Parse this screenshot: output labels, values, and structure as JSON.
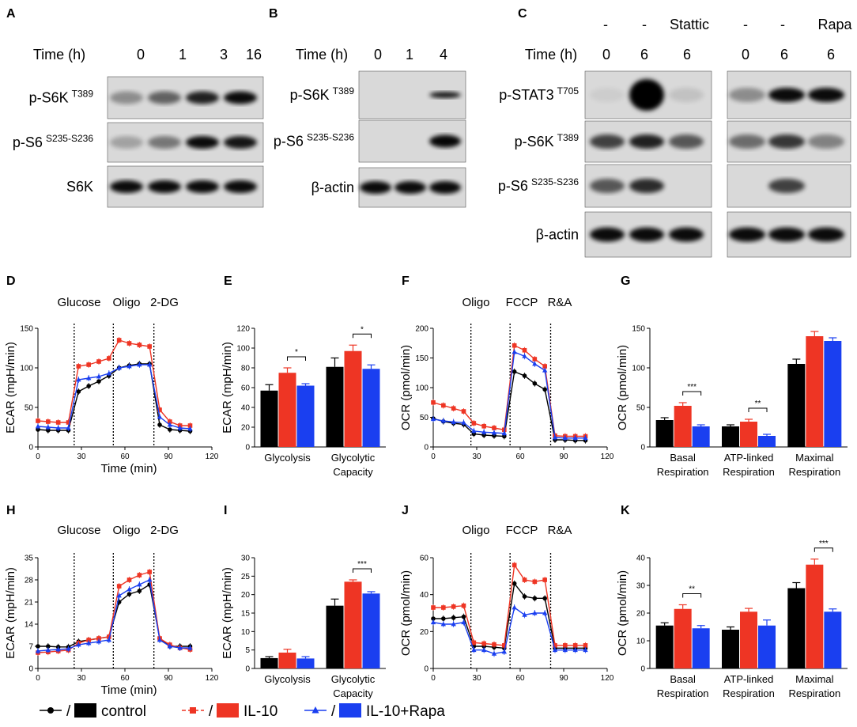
{
  "colors": {
    "control": "#000000",
    "il10": "#ee3524",
    "rapa": "#1a3ff0"
  },
  "blots": {
    "A": {
      "letter": "A",
      "time_label": "Time (h)",
      "times": [
        "0",
        "1",
        "3",
        "16"
      ],
      "rows": [
        {
          "base": "p-S6K",
          "sup": "T389"
        },
        {
          "base": "p-S6",
          "sup": "S235-S236"
        },
        {
          "base": "S6K",
          "sup": ""
        }
      ]
    },
    "B": {
      "letter": "B",
      "time_label": "Time (h)",
      "times": [
        "0",
        "1",
        "4"
      ],
      "rows": [
        {
          "base": "p-S6K",
          "sup": "T389"
        },
        {
          "base": "p-S6",
          "sup": "S235-S236"
        },
        {
          "base": "β-actin",
          "sup": ""
        }
      ]
    },
    "C": {
      "letter": "C",
      "time_label": "Time (h)",
      "left_treat": [
        "-",
        "-",
        "Stattic"
      ],
      "right_treat": [
        "-",
        "-",
        "Rapa"
      ],
      "left_times": [
        "0",
        "6",
        "6"
      ],
      "right_times": [
        "0",
        "6",
        "6"
      ],
      "rows": [
        {
          "base": "p-STAT3",
          "sup": "T705"
        },
        {
          "base": "p-S6K",
          "sup": "T389"
        },
        {
          "base": "p-S6",
          "sup": "S235-S236"
        },
        {
          "base": "β-actin",
          "sup": ""
        }
      ]
    }
  },
  "chart_data": [
    {
      "panel": "D",
      "type": "line",
      "injections": [
        "Glucose",
        "Oligo",
        "2-DG"
      ],
      "xlabel": "Time (min)",
      "ylabel": "ECAR (mpH/min)",
      "xlim": [
        0,
        120
      ],
      "ylim": [
        0,
        150
      ],
      "xticks": [
        0,
        30,
        60,
        90,
        120
      ],
      "yticks": [
        0,
        50,
        100,
        150
      ],
      "vlines": [
        25,
        52,
        80
      ],
      "x": [
        0,
        7,
        14,
        21,
        28,
        35,
        42,
        49,
        56,
        63,
        70,
        77,
        84,
        91,
        98,
        105
      ],
      "series": [
        {
          "name": "control",
          "values": [
            22,
            21,
            21,
            21,
            70,
            77,
            83,
            90,
            100,
            103,
            105,
            105,
            28,
            22,
            21,
            20
          ]
        },
        {
          "name": "IL-10",
          "values": [
            33,
            32,
            31,
            31,
            102,
            104,
            108,
            112,
            135,
            131,
            129,
            127,
            47,
            32,
            27,
            27
          ]
        },
        {
          "name": "IL-10+Rapa",
          "values": [
            26,
            25,
            24,
            24,
            85,
            87,
            89,
            93,
            100,
            102,
            104,
            104,
            38,
            28,
            24,
            23
          ]
        }
      ]
    },
    {
      "panel": "E",
      "type": "bar",
      "categories": [
        "Glycolysis",
        "Glycolytic Capacity"
      ],
      "ylabel": "ECAR (mpH/min)",
      "ylim": [
        0,
        120
      ],
      "yticks": [
        0,
        20,
        40,
        60,
        80,
        100,
        120
      ],
      "series": [
        {
          "name": "control",
          "values": [
            57,
            81
          ]
        },
        {
          "name": "IL-10",
          "values": [
            75,
            97
          ]
        },
        {
          "name": "IL-10+Rapa",
          "values": [
            62,
            79
          ]
        }
      ],
      "errors": [
        [
          6,
          9
        ],
        [
          5,
          6
        ],
        [
          2,
          4
        ]
      ],
      "significance": [
        {
          "category": 0,
          "from": 1,
          "to": 2,
          "label": "*"
        },
        {
          "category": 1,
          "from": 1,
          "to": 2,
          "label": "*"
        }
      ]
    },
    {
      "panel": "F",
      "type": "line",
      "injections": [
        "Oligo",
        "FCCP",
        "R&A"
      ],
      "xlabel": "",
      "ylabel": "OCR (pmol/min)",
      "xlim": [
        0,
        120
      ],
      "ylim": [
        0,
        200
      ],
      "xticks": [
        0,
        30,
        60,
        90,
        120
      ],
      "yticks": [
        0,
        50,
        100,
        150,
        200
      ],
      "vlines": [
        26,
        53,
        81
      ],
      "x": [
        0,
        7,
        14,
        21,
        28,
        35,
        42,
        49,
        56,
        63,
        70,
        77,
        84,
        91,
        98,
        105
      ],
      "series": [
        {
          "name": "control",
          "values": [
            48,
            43,
            40,
            38,
            22,
            20,
            19,
            18,
            127,
            120,
            107,
            97,
            12,
            12,
            11,
            11
          ]
        },
        {
          "name": "IL-10",
          "values": [
            75,
            70,
            65,
            60,
            40,
            35,
            32,
            29,
            171,
            163,
            148,
            136,
            19,
            18,
            18,
            18
          ]
        },
        {
          "name": "IL-10+Rapa",
          "values": [
            47,
            44,
            42,
            41,
            27,
            25,
            24,
            23,
            160,
            153,
            140,
            129,
            16,
            15,
            15,
            15
          ]
        }
      ]
    },
    {
      "panel": "G",
      "type": "bar",
      "categories": [
        "Basal Respiration",
        "ATP-linked Respiration",
        "Maximal Respiration"
      ],
      "ylabel": "OCR (pmol/min)",
      "ylim": [
        0,
        150
      ],
      "yticks": [
        0,
        50,
        100,
        150
      ],
      "series": [
        {
          "name": "control",
          "values": [
            34,
            26,
            105
          ]
        },
        {
          "name": "IL-10",
          "values": [
            52,
            32,
            140
          ]
        },
        {
          "name": "IL-10+Rapa",
          "values": [
            26,
            14,
            134
          ]
        }
      ],
      "errors": [
        [
          3,
          2,
          6
        ],
        [
          4,
          3,
          6
        ],
        [
          2,
          2,
          4
        ]
      ],
      "significance": [
        {
          "category": 0,
          "from": 1,
          "to": 2,
          "label": "***"
        },
        {
          "category": 1,
          "from": 1,
          "to": 2,
          "label": "**"
        }
      ]
    },
    {
      "panel": "H",
      "type": "line",
      "injections": [
        "Glucose",
        "Oligo",
        "2-DG"
      ],
      "xlabel": "Time (min)",
      "ylabel": "ECAR (mpH/min)",
      "xlim": [
        0,
        120
      ],
      "ylim": [
        0,
        35
      ],
      "xticks": [
        0,
        30,
        60,
        90,
        120
      ],
      "yticks": [
        0,
        7,
        14,
        21,
        28,
        35
      ],
      "vlines": [
        25,
        52,
        80
      ],
      "x": [
        0,
        7,
        14,
        21,
        28,
        35,
        42,
        49,
        56,
        63,
        70,
        77,
        84,
        91,
        98,
        105
      ],
      "series": [
        {
          "name": "control",
          "values": [
            7,
            7,
            6.8,
            6.8,
            8.5,
            9,
            9.5,
            10,
            21,
            23.5,
            24.5,
            26.5,
            9.5,
            7,
            7,
            7
          ]
        },
        {
          "name": "IL-10",
          "values": [
            5,
            5.2,
            5.5,
            5.8,
            8,
            9,
            9.5,
            10,
            26,
            28,
            29.5,
            30.5,
            9.5,
            7.5,
            6.5,
            6
          ]
        },
        {
          "name": "IL-10+Rapa",
          "values": [
            5.5,
            5.8,
            6,
            6.2,
            7.5,
            8,
            8.5,
            9,
            23,
            25,
            26.5,
            28,
            9,
            7,
            6.5,
            6.5
          ]
        }
      ]
    },
    {
      "panel": "I",
      "type": "bar",
      "categories": [
        "Glycolysis",
        "Glycolytic Capacity"
      ],
      "ylabel": "ECAR (mpH/min)",
      "ylim": [
        0,
        30
      ],
      "yticks": [
        0,
        5,
        10,
        15,
        20,
        25,
        30
      ],
      "series": [
        {
          "name": "control",
          "values": [
            2.8,
            17
          ]
        },
        {
          "name": "IL-10",
          "values": [
            4.3,
            23.5
          ]
        },
        {
          "name": "IL-10+Rapa",
          "values": [
            2.7,
            20.3
          ]
        }
      ],
      "errors": [
        [
          0.4,
          1.8
        ],
        [
          0.9,
          0.5
        ],
        [
          0.5,
          0.5
        ]
      ],
      "significance": [
        {
          "category": 1,
          "from": 1,
          "to": 2,
          "label": "***"
        }
      ]
    },
    {
      "panel": "J",
      "type": "line",
      "injections": [
        "Oligo",
        "FCCP",
        "R&A"
      ],
      "xlabel": "",
      "ylabel": "OCR (pmol/min)",
      "xlim": [
        0,
        120
      ],
      "ylim": [
        0,
        60
      ],
      "xticks": [
        0,
        30,
        60,
        90,
        120
      ],
      "yticks": [
        0,
        20,
        40,
        60
      ],
      "vlines": [
        26,
        53,
        81
      ],
      "x": [
        0,
        7,
        14,
        21,
        28,
        35,
        42,
        49,
        56,
        63,
        70,
        77,
        84,
        91,
        98,
        105
      ],
      "series": [
        {
          "name": "control",
          "values": [
            27,
            27,
            27.5,
            28,
            12,
            12,
            11.5,
            11,
            46,
            39,
            38,
            38,
            11,
            11,
            11,
            11
          ]
        },
        {
          "name": "IL-10",
          "values": [
            33,
            33,
            33.5,
            34,
            14,
            13.5,
            13,
            12.5,
            56,
            48,
            47,
            48,
            12.5,
            12.5,
            12.5,
            12.5
          ]
        },
        {
          "name": "IL-10+Rapa",
          "values": [
            25,
            24,
            24,
            25,
            10,
            10,
            8,
            9,
            33,
            29,
            30,
            30,
            10,
            10,
            10,
            10
          ]
        }
      ]
    },
    {
      "panel": "K",
      "type": "bar",
      "categories": [
        "Basal Respiration",
        "ATP-linked Respiration",
        "Maximal Respiration"
      ],
      "ylabel": "OCR (pmol/min)",
      "ylim": [
        0,
        40
      ],
      "yticks": [
        0,
        10,
        20,
        30,
        40
      ],
      "series": [
        {
          "name": "control",
          "values": [
            15.5,
            14,
            29
          ]
        },
        {
          "name": "IL-10",
          "values": [
            21.5,
            20.5,
            37.5
          ]
        },
        {
          "name": "IL-10+Rapa",
          "values": [
            14.5,
            15.5,
            20.5
          ]
        }
      ],
      "errors": [
        [
          1,
          1,
          2
        ],
        [
          1.5,
          1.2,
          2
        ],
        [
          1,
          2,
          1
        ]
      ],
      "significance": [
        {
          "category": 0,
          "from": 1,
          "to": 2,
          "label": "**"
        },
        {
          "category": 2,
          "from": 1,
          "to": 2,
          "label": "***"
        }
      ]
    }
  ],
  "legend": [
    {
      "name": "control",
      "sep": "/"
    },
    {
      "name": "IL-10",
      "sep": "/"
    },
    {
      "name": "IL-10+Rapa",
      "sep": "/"
    }
  ]
}
